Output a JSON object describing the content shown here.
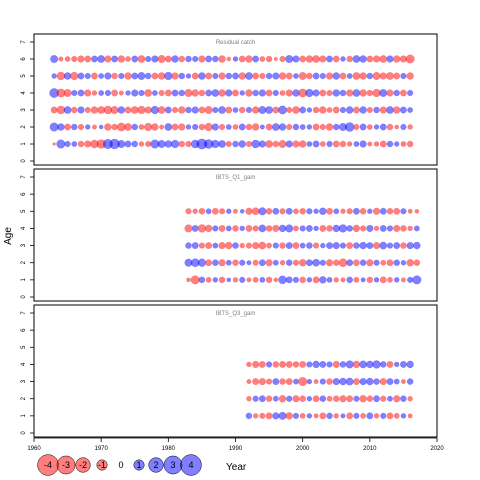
{
  "chart_data": {
    "type": "scatter",
    "subtype": "bubble-residuals",
    "ylabel": "Age",
    "xlabel": "Year",
    "xlim": [
      1960,
      2020
    ],
    "x_ticks": [
      1960,
      1970,
      1980,
      1990,
      2000,
      2010,
      2020
    ],
    "y_ticks": [
      0,
      1,
      2,
      3,
      4,
      5,
      6,
      7
    ],
    "colors": {
      "positive": "#FF0000",
      "negative": "#0000FF",
      "opacity": 0.5
    },
    "legend": {
      "placement": "bottom-left",
      "values": [
        -4,
        -3,
        -2,
        -1,
        0,
        1,
        2,
        3,
        4
      ],
      "labels": [
        "-4",
        "-3",
        "-2",
        "-1",
        "0",
        "1",
        "2",
        "3",
        "4"
      ]
    },
    "panels": [
      {
        "title": "Residual catch",
        "ylim": [
          0,
          7
        ],
        "year_start": 1963,
        "year_end": 2016,
        "ages": [
          1,
          2,
          3,
          4,
          5,
          6
        ],
        "residuals": {
          "1": [
            0.2,
            -1.8,
            -0.8,
            -0.7,
            0.9,
            1.1,
            1.6,
            1.9,
            -2.2,
            -2.4,
            -1.4,
            -1.0,
            -0.9,
            0.6,
            0.8,
            -1.8,
            -1.4,
            -1.2,
            -1.5,
            0.9,
            0.8,
            -1.6,
            -2.6,
            -2.0,
            -1.5,
            -1.3,
            0.8,
            -0.9,
            -1.2,
            0.8,
            -1.6,
            -1.1,
            1.3,
            0.9,
            1.4,
            -1.1,
            1.1,
            1.2,
            -0.7,
            -1.0,
            0.7,
            -0.8,
            1.0,
            0.9,
            0.6,
            -0.7,
            -1.1,
            0.5,
            0.6,
            1.0,
            -0.9,
            -0.6,
            0.7,
            0.9
          ],
          "2": [
            -1.8,
            -1.2,
            1.0,
            -0.9,
            0.8,
            -0.6,
            0.5,
            -0.4,
            1.2,
            0.9,
            1.7,
            1.3,
            -0.9,
            0.7,
            1.5,
            1.2,
            0.5,
            -1.3,
            1.0,
            1.1,
            -0.6,
            -0.8,
            0.9,
            1.5,
            -1.1,
            0.8,
            -0.7,
            0.7,
            -1.0,
            0.9,
            1.2,
            -0.5,
            1.0,
            -1.3,
            -1.2,
            0.8,
            -0.9,
            -0.7,
            -0.6,
            1.0,
            0.8,
            1.2,
            -0.9,
            -1.4,
            -2.0,
            0.8,
            -1.0,
            0.7,
            -0.6,
            -1.0,
            0.9,
            0.4,
            -0.8,
            0.6
          ],
          "3": [
            1.0,
            1.6,
            -1.3,
            0.9,
            -1.1,
            0.8,
            1.2,
            1.3,
            1.6,
            1.4,
            -1.2,
            1.0,
            1.3,
            1.5,
            1.1,
            -1.5,
            1.3,
            -1.0,
            0.8,
            1.2,
            -0.9,
            -1.1,
            1.0,
            1.4,
            -0.8,
            -1.3,
            1.0,
            -0.7,
            0.9,
            -0.8,
            1.2,
            -1.4,
            -1.3,
            1.0,
            -1.7,
            0.8,
            1.3,
            -1.0,
            -0.6,
            0.9,
            1.2,
            0.7,
            1.0,
            -0.8,
            -1.2,
            1.0,
            -1.2,
            0.8,
            -0.9,
            1.1,
            -1.3,
            1.2,
            -1.0,
            -0.7
          ],
          "4": [
            -2.1,
            1.7,
            1.4,
            -0.8,
            -1.0,
            1.1,
            0.6,
            -0.7,
            -0.8,
            1.0,
            0.5,
            -0.6,
            -1.1,
            -0.8,
            1.3,
            -0.7,
            0.8,
            1.0,
            -1.0,
            -0.9,
            1.4,
            1.2,
            0.9,
            -1.0,
            -1.3,
            1.2,
            -1.1,
            1.0,
            -0.6,
            1.2,
            -0.9,
            -1.1,
            1.0,
            -0.8,
            0.7,
            1.1,
            -1.2,
            1.7,
            -1.5,
            -1.1,
            1.0,
            0.8,
            -1.2,
            -0.9,
            1.1,
            -1.3,
            1.2,
            0.9,
            1.5,
            -1.4,
            1.1,
            -0.9,
            1.0,
            -0.8
          ],
          "5": [
            -0.6,
            1.6,
            -1.2,
            1.5,
            -1.0,
            -0.8,
            1.0,
            -0.7,
            -1.1,
            0.9,
            -0.8,
            1.2,
            -1.0,
            -1.4,
            -0.9,
            1.0,
            1.2,
            -1.5,
            1.1,
            -0.9,
            -0.6,
            1.0,
            -1.2,
            1.0,
            -0.8,
            1.1,
            -0.9,
            -1.0,
            1.2,
            -1.3,
            1.0,
            0.8,
            -0.9,
            -1.1,
            1.2,
            1.0,
            -0.7,
            1.4,
            0.9,
            -1.0,
            -0.8,
            1.1,
            -1.2,
            1.0,
            -0.7,
            1.3,
            1.2,
            -0.9,
            1.4,
            1.1,
            1.3,
            1.0,
            -0.8,
            1.2
          ],
          "6": [
            -1.4,
            0.5,
            0.7,
            0.8,
            1.1,
            1.0,
            -1.0,
            -1.3,
            1.1,
            -1.0,
            1.2,
            0.7,
            -1.0,
            1.3,
            -0.8,
            -1.1,
            1.4,
            1.0,
            -1.2,
            0.9,
            -0.9,
            -0.8,
            1.1,
            -1.0,
            -0.9,
            1.2,
            0.4,
            -0.6,
            1.0,
            1.2,
            -1.0,
            0.7,
            0.9,
            0.3,
            0.8,
            -1.4,
            -1.1,
            1.0,
            1.2,
            1.3,
            1.1,
            -1.0,
            1.0,
            -0.6,
            0.9,
            -1.3,
            -1.2,
            1.0,
            1.1,
            1.3,
            -1.1,
            1.2,
            1.1,
            1.8
          ]
        }
      },
      {
        "title": "IBTS_Q1_gam",
        "ylim": [
          0,
          7
        ],
        "year_start": 1983,
        "year_end": 2017,
        "ages": [
          1,
          2,
          3,
          4,
          5
        ],
        "residuals": {
          "1": [
            0.4,
            1.8,
            -0.9,
            0.7,
            -0.6,
            0.9,
            -0.4,
            0.6,
            -0.8,
            0.5,
            0.7,
            -0.7,
            0.9,
            0.4,
            -1.6,
            -1.0,
            -0.8,
            0.9,
            -0.6,
            1.0,
            -1.2,
            -0.7,
            0.6,
            0.5,
            -0.9,
            0.7,
            -0.5,
            0.9,
            -0.6,
            1.0,
            0.7,
            -0.6,
            0.5,
            -0.8,
            -1.8
          ],
          "2": [
            -1.4,
            -1.6,
            -1.5,
            1.0,
            -0.9,
            1.1,
            -0.7,
            0.9,
            -0.8,
            -0.5,
            0.8,
            -1.0,
            1.1,
            -0.7,
            0.6,
            -0.9,
            0.8,
            1.2,
            -1.0,
            -1.3,
            -0.8,
            1.1,
            0.9,
            1.6,
            -1.0,
            1.0,
            -0.9,
            1.1,
            -0.8,
            0.7,
            1.0,
            -0.9,
            -0.6,
            1.2,
            0.9
          ],
          "3": [
            -0.9,
            -1.0,
            0.8,
            1.0,
            -0.7,
            1.1,
            1.2,
            -0.9,
            0.6,
            0.8,
            1.1,
            1.3,
            0.7,
            -0.8,
            0.9,
            -1.0,
            1.0,
            -0.7,
            -0.9,
            0.8,
            -0.6,
            -1.0,
            -1.1,
            -0.8,
            1.0,
            -0.9,
            -1.2,
            -1.0,
            1.1,
            -1.3,
            -0.8,
            -1.0,
            0.9,
            -1.1,
            -1.2
          ],
          "4": [
            1.4,
            -1.0,
            1.5,
            1.2,
            -0.8,
            1.0,
            -0.7,
            0.9,
            -0.6,
            1.0,
            0.8,
            -1.3,
            0.9,
            1.1,
            -1.2,
            -1.4,
            0.7,
            -0.8,
            -1.0,
            -0.6,
            1.0,
            0.9,
            -1.2,
            -1.5,
            -0.9,
            1.2,
            0.8,
            -1.1,
            0.6,
            -1.0,
            -0.8,
            1.1,
            0.9,
            0.6,
            -0.7
          ],
          "5": [
            0.8,
            0.6,
            0.9,
            -0.7,
            1.0,
            0.8,
            -0.6,
            0.5,
            -0.4,
            1.1,
            1.3,
            -1.4,
            0.9,
            -1.0,
            0.8,
            -1.0,
            0.7,
            0.9,
            -0.8,
            -0.6,
            -1.2,
            1.0,
            -0.7,
            0.6,
            0.8,
            -1.0,
            0.9,
            -0.6,
            1.1,
            -1.0,
            0.9,
            1.0,
            -0.8,
            0.5,
            0.4
          ]
        }
      },
      {
        "title": "IBTS_Q3_gam",
        "ylim": [
          0,
          7
        ],
        "year_start": 1992,
        "year_end": 2016,
        "ages": [
          1,
          2,
          3,
          4
        ],
        "residuals": {
          "1": [
            -0.9,
            0.6,
            0.8,
            1.0,
            -1.1,
            -1.4,
            1.2,
            -0.8,
            0.7,
            -0.6,
            0.5,
            1.0,
            -0.9,
            0.6,
            -0.5,
            1.0,
            -0.8,
            0.7,
            -1.0,
            0.6,
            -0.8,
            1.0,
            0.7,
            -0.6,
            0.5
          ],
          "2": [
            0.6,
            -0.8,
            -1.0,
            0.9,
            -0.7,
            1.2,
            -0.8,
            1.1,
            0.9,
            -0.6,
            1.0,
            -0.9,
            0.7,
            0.9,
            1.1,
            1.0,
            -0.8,
            1.2,
            0.9,
            -1.0,
            0.8,
            -0.7,
            1.1,
            -0.9,
            0.6
          ],
          "3": [
            0.5,
            1.0,
            1.1,
            0.8,
            -1.0,
            0.9,
            1.0,
            -0.7,
            1.8,
            -0.6,
            0.5,
            -0.8,
            0.9,
            -1.1,
            -1.2,
            -1.3,
            1.0,
            -1.1,
            -1.2,
            -0.9,
            1.1,
            -1.0,
            -0.7,
            0.5,
            -0.9
          ],
          "4": [
            0.6,
            1.1,
            1.0,
            -0.8,
            0.9,
            1.0,
            1.0,
            0.9,
            1.0,
            -0.8,
            -1.2,
            -1.0,
            -0.8,
            1.1,
            -0.9,
            -1.4,
            1.2,
            -1.3,
            -1.2,
            -1.5,
            -0.9,
            1.0,
            -0.6,
            -1.0,
            -1.2
          ]
        }
      }
    ]
  }
}
